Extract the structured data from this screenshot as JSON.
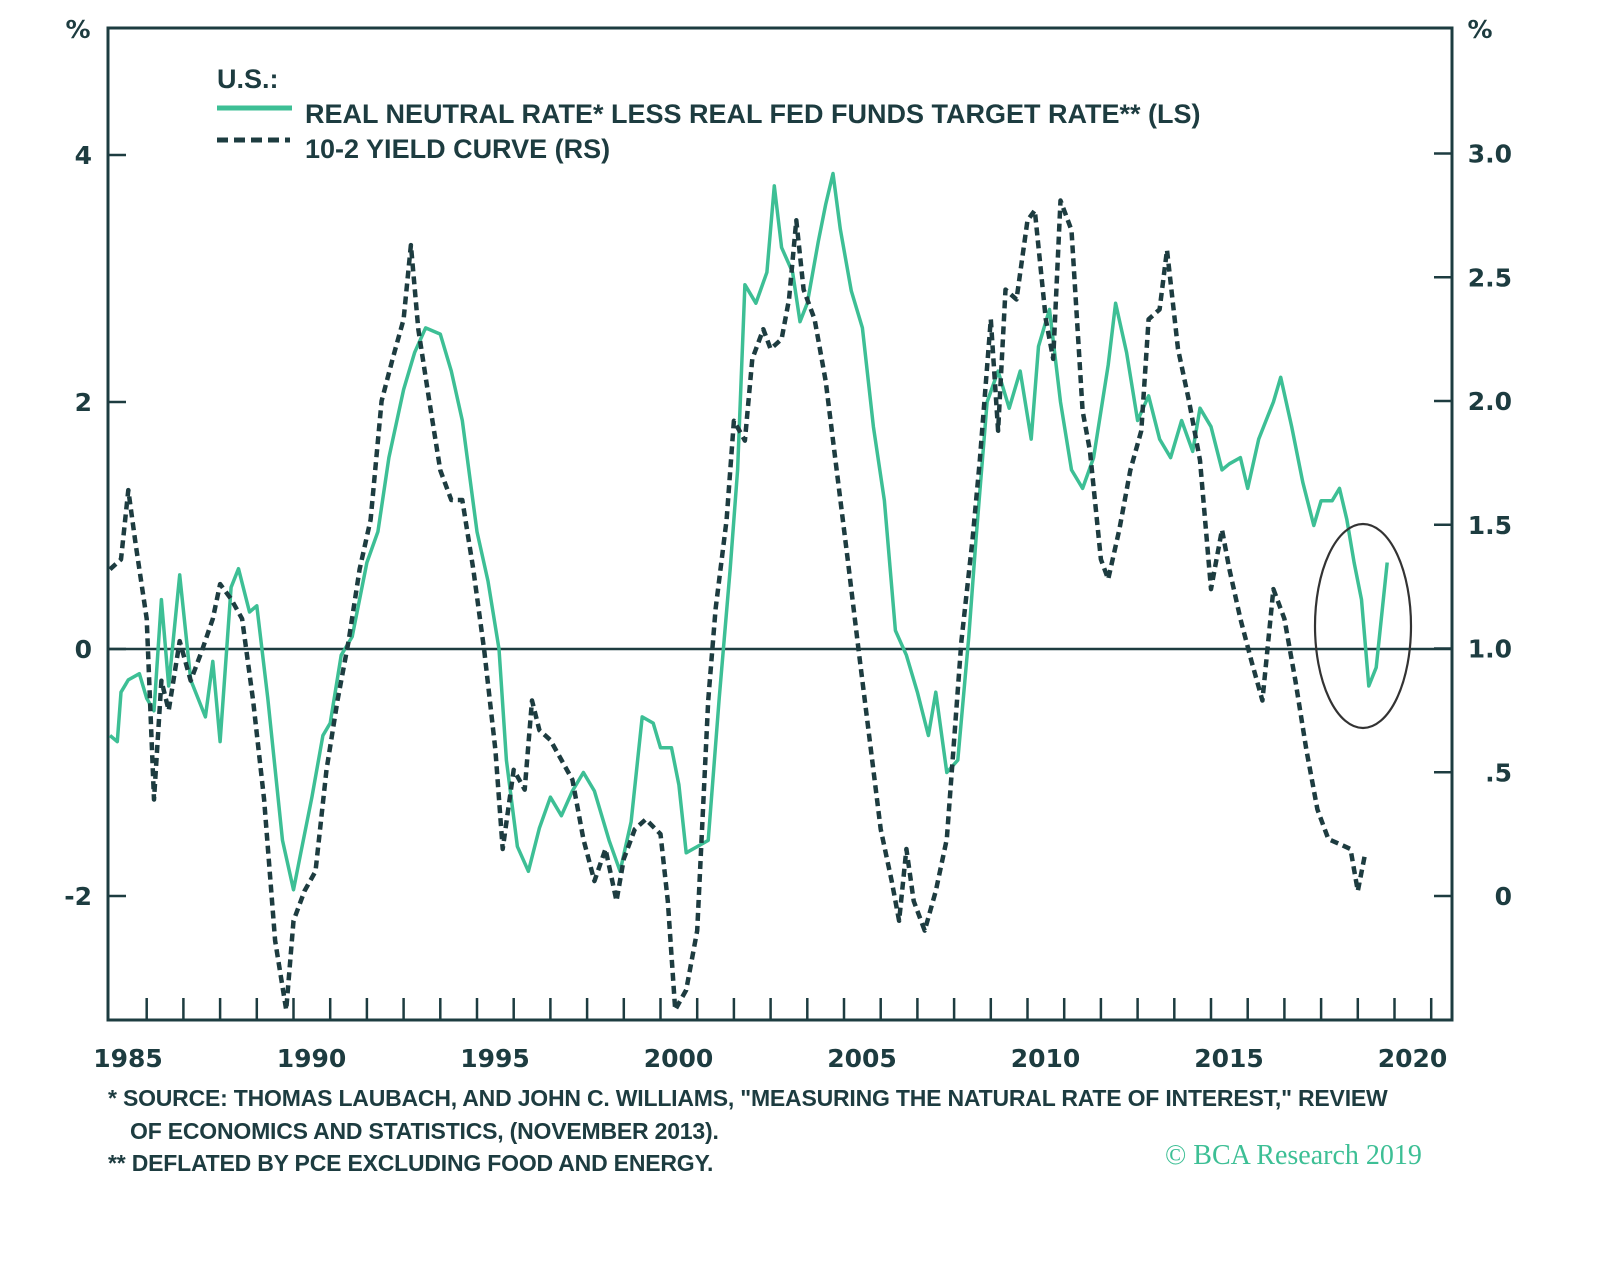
{
  "chart_data": {
    "type": "line",
    "title": "U.S.:",
    "xlabel": "",
    "ylabel_left": "%",
    "ylabel_right": "%",
    "x_range": [
      1985,
      2021.5
    ],
    "x_ticks": [
      "1985",
      "1990",
      "1995",
      "2000",
      "2005",
      "2010",
      "2015",
      "2020"
    ],
    "y_left": {
      "range": [
        -3,
        5
      ],
      "ticks": [
        {
          "v": 4,
          "label": "4"
        },
        {
          "v": 2,
          "label": "2"
        },
        {
          "v": 0,
          "label": "0"
        },
        {
          "v": -2,
          "label": "-2"
        }
      ]
    },
    "y_right": {
      "range": [
        -0.5,
        3.5
      ],
      "ticks": [
        {
          "v": 3.0,
          "label": "3.0"
        },
        {
          "v": 2.5,
          "label": "2.5"
        },
        {
          "v": 2.0,
          "label": "2.0"
        },
        {
          "v": 1.5,
          "label": "1.5"
        },
        {
          "v": 1.0,
          "label": "1.0"
        },
        {
          "v": 0.5,
          "label": ".5"
        },
        {
          "v": 0,
          "label": "0"
        }
      ]
    },
    "zero_line": "left axis 0 (right axis 1.0)",
    "legend_placement": "top-left",
    "series": [
      {
        "name": "REAL NEUTRAL RATE* LESS REAL FED FUNDS TARGET RATE** (LS)",
        "axis": "left",
        "style": "solid",
        "color": "#3dbf95",
        "x": [
          1985.0,
          1985.2,
          1985.3,
          1985.5,
          1985.8,
          1986.0,
          1986.2,
          1986.4,
          1986.6,
          1986.9,
          1987.2,
          1987.6,
          1987.8,
          1988.0,
          1988.3,
          1988.5,
          1988.8,
          1989.0,
          1989.3,
          1989.7,
          1990.0,
          1990.2,
          1990.5,
          1990.8,
          1991.0,
          1991.3,
          1991.6,
          1992.0,
          1992.3,
          1992.6,
          1993.0,
          1993.3,
          1993.6,
          1994.0,
          1994.3,
          1994.6,
          1995.0,
          1995.3,
          1995.6,
          1995.8,
          1996.1,
          1996.4,
          1996.7,
          1997.0,
          1997.3,
          1997.6,
          1997.9,
          1998.2,
          1998.6,
          1998.9,
          1999.2,
          1999.5,
          1999.8,
          2000.0,
          2000.3,
          2000.5,
          2000.7,
          2001.0,
          2001.3,
          2001.6,
          2001.9,
          2002.1,
          2002.3,
          2002.6,
          2002.9,
          2003.1,
          2003.3,
          2003.6,
          2003.8,
          2004.0,
          2004.3,
          2004.5,
          2004.7,
          2004.9,
          2005.2,
          2005.5,
          2005.8,
          2006.1,
          2006.4,
          2006.7,
          2007.0,
          2007.3,
          2007.5,
          2007.8,
          2008.1,
          2008.4,
          2008.6,
          2008.9,
          2009.2,
          2009.5,
          2009.8,
          2010.1,
          2010.3,
          2010.6,
          2010.9,
          2011.2,
          2011.5,
          2011.8,
          2012.2,
          2012.4,
          2012.7,
          2013.0,
          2013.3,
          2013.6,
          2013.9,
          2014.2,
          2014.5,
          2014.7,
          2015.0,
          2015.3,
          2015.5,
          2015.8,
          2016.0,
          2016.3,
          2016.7,
          2016.9,
          2017.2,
          2017.5,
          2017.8,
          2018.0,
          2018.3,
          2018.5,
          2018.7,
          2018.9,
          2019.1,
          2019.3,
          2019.5,
          2019.8
        ],
        "values": [
          -0.7,
          -0.75,
          -0.35,
          -0.25,
          -0.2,
          -0.4,
          -0.5,
          0.4,
          -0.3,
          0.6,
          -0.25,
          -0.55,
          -0.1,
          -0.75,
          0.5,
          0.65,
          0.3,
          0.35,
          -0.4,
          -1.55,
          -1.95,
          -1.65,
          -1.2,
          -0.7,
          -0.6,
          -0.05,
          0.1,
          0.7,
          0.95,
          1.55,
          2.1,
          2.4,
          2.6,
          2.55,
          2.25,
          1.85,
          0.95,
          0.55,
          0.0,
          -0.9,
          -1.6,
          -1.8,
          -1.45,
          -1.2,
          -1.35,
          -1.15,
          -1.0,
          -1.15,
          -1.55,
          -1.8,
          -1.4,
          -0.55,
          -0.6,
          -0.8,
          -0.8,
          -1.1,
          -1.65,
          -1.6,
          -1.55,
          -0.4,
          0.65,
          1.45,
          2.95,
          2.8,
          3.05,
          3.75,
          3.25,
          3.05,
          2.65,
          2.8,
          3.3,
          3.6,
          3.85,
          3.4,
          2.9,
          2.6,
          1.8,
          1.2,
          0.15,
          -0.05,
          -0.35,
          -0.7,
          -0.35,
          -1.0,
          -0.9,
          0.1,
          0.9,
          2.0,
          2.25,
          1.95,
          2.25,
          1.7,
          2.45,
          2.75,
          2.0,
          1.45,
          1.3,
          1.55,
          2.3,
          2.8,
          2.4,
          1.85,
          2.05,
          1.7,
          1.55,
          1.85,
          1.6,
          1.95,
          1.8,
          1.45,
          1.5,
          1.55,
          1.3,
          1.7,
          2.0,
          2.2,
          1.8,
          1.35,
          1.0,
          1.2,
          1.2,
          1.3,
          1.05,
          0.7,
          0.4,
          -0.3,
          -0.15,
          0.7
        ]
      },
      {
        "name": "10-2 YIELD CURVE (RS)",
        "axis": "right",
        "style": "dashed",
        "color": "#1d3c40",
        "x": [
          1985.0,
          1985.3,
          1985.5,
          1985.7,
          1986.0,
          1986.2,
          1986.4,
          1986.6,
          1986.9,
          1987.2,
          1987.5,
          1987.8,
          1988.0,
          1988.3,
          1988.6,
          1988.9,
          1989.2,
          1989.5,
          1989.8,
          1990.0,
          1990.3,
          1990.6,
          1990.9,
          1991.2,
          1991.5,
          1991.8,
          1992.1,
          1992.4,
          1992.7,
          1993.0,
          1993.2,
          1993.4,
          1993.7,
          1994.0,
          1994.3,
          1994.6,
          1994.9,
          1995.2,
          1995.5,
          1995.7,
          1996.0,
          1996.3,
          1996.5,
          1996.7,
          1997.0,
          1997.3,
          1997.6,
          1997.9,
          1998.2,
          1998.5,
          1998.8,
          1999.0,
          1999.3,
          1999.6,
          2000.0,
          2000.2,
          2000.4,
          2000.7,
          2001.0,
          2001.3,
          2001.5,
          2001.8,
          2002.0,
          2002.3,
          2002.5,
          2002.8,
          2003.0,
          2003.3,
          2003.5,
          2003.7,
          2003.9,
          2004.2,
          2004.5,
          2004.8,
          2005.1,
          2005.4,
          2005.7,
          2006.0,
          2006.3,
          2006.5,
          2006.7,
          2006.9,
          2007.2,
          2007.5,
          2007.8,
          2008.0,
          2008.2,
          2008.5,
          2008.7,
          2009.0,
          2009.2,
          2009.4,
          2009.7,
          2010.0,
          2010.2,
          2010.5,
          2010.7,
          2010.9,
          2011.2,
          2011.5,
          2011.7,
          2012.0,
          2012.2,
          2012.5,
          2012.8,
          2013.1,
          2013.3,
          2013.6,
          2013.8,
          2014.1,
          2014.4,
          2014.7,
          2015.0,
          2015.3,
          2015.5,
          2015.8,
          2016.1,
          2016.4,
          2016.7,
          2017.0,
          2017.3,
          2017.6,
          2017.9,
          2018.2,
          2018.5,
          2018.8,
          2019.0,
          2019.2
        ],
        "values": [
          1.32,
          1.36,
          1.64,
          1.42,
          1.12,
          0.39,
          0.87,
          0.75,
          1.03,
          0.87,
          0.99,
          1.12,
          1.26,
          1.2,
          1.12,
          0.79,
          0.39,
          -0.18,
          -0.46,
          -0.1,
          0.02,
          0.1,
          0.51,
          0.79,
          1.03,
          1.32,
          1.52,
          2.0,
          2.17,
          2.33,
          2.63,
          2.29,
          2.0,
          1.72,
          1.6,
          1.6,
          1.32,
          0.99,
          0.59,
          0.19,
          0.51,
          0.43,
          0.79,
          0.67,
          0.63,
          0.55,
          0.47,
          0.23,
          0.06,
          0.19,
          -0.02,
          0.15,
          0.27,
          0.31,
          0.25,
          -0.02,
          -0.46,
          -0.38,
          -0.14,
          0.79,
          1.16,
          1.52,
          1.92,
          1.84,
          2.17,
          2.29,
          2.21,
          2.25,
          2.41,
          2.73,
          2.45,
          2.33,
          2.08,
          1.72,
          1.36,
          0.99,
          0.63,
          0.27,
          0.06,
          -0.1,
          0.19,
          -0.02,
          -0.14,
          0.02,
          0.23,
          0.63,
          1.03,
          1.44,
          1.76,
          2.33,
          1.88,
          2.45,
          2.41,
          2.73,
          2.77,
          2.33,
          2.17,
          2.81,
          2.69,
          1.96,
          1.8,
          1.36,
          1.28,
          1.48,
          1.72,
          1.88,
          2.33,
          2.37,
          2.61,
          2.21,
          2.0,
          1.76,
          1.24,
          1.48,
          1.32,
          1.12,
          0.95,
          0.79,
          1.24,
          1.12,
          0.87,
          0.59,
          0.35,
          0.23,
          0.21,
          0.19,
          0.02,
          0.17
        ]
      }
    ],
    "annotations": [
      {
        "type": "ellipse",
        "around": "2018.5-2019.8 LS dip",
        "description": "circled recent dip in real neutral rate less real fed funds"
      }
    ]
  },
  "legend": {
    "title": "U.S.:",
    "items": [
      {
        "label": "REAL NEUTRAL RATE* LESS REAL FED FUNDS TARGET RATE** (LS)",
        "style": "solid"
      },
      {
        "label": "10-2 YIELD CURVE (RS)",
        "style": "dashed"
      }
    ]
  },
  "axis_units": {
    "left": "%",
    "right": "%"
  },
  "footnotes": {
    "line1": "*  SOURCE: THOMAS LAUBACH, AND JOHN C. WILLIAMS, \"MEASURING THE NATURAL RATE OF INTEREST,\" REVIEW",
    "line2": "OF ECONOMICS AND STATISTICS, (NOVEMBER 2013).",
    "line3": "**  DEFLATED BY PCE EXCLUDING FOOD AND ENERGY."
  },
  "copyright": "© BCA Research 2019",
  "colors": {
    "green": "#3dbf95",
    "dark": "#1d3c40"
  }
}
